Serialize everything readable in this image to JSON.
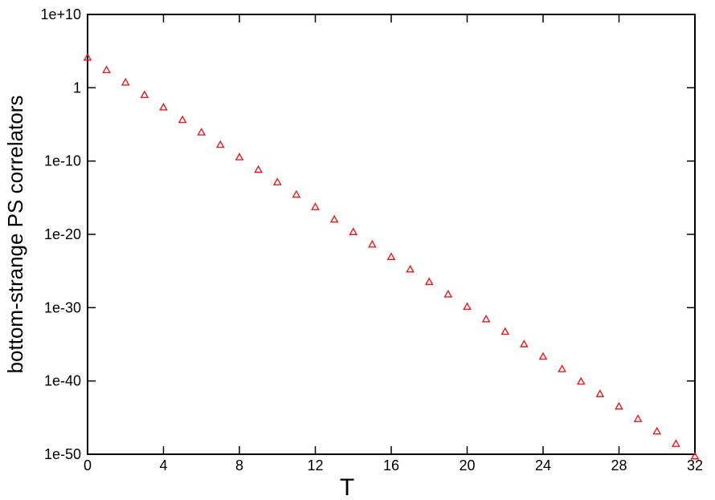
{
  "chart_data": {
    "type": "scatter",
    "title": "",
    "xlabel": "T",
    "ylabel": "bottom-strange PS correlators",
    "x_scale": "linear",
    "y_scale": "log",
    "xlim": [
      0,
      32
    ],
    "ylim": [
      1e-50,
      10000000000.0
    ],
    "x_ticks": [
      0,
      4,
      8,
      12,
      16,
      20,
      24,
      28,
      32
    ],
    "x_tick_labels": [
      "0",
      "4",
      "8",
      "12",
      "16",
      "20",
      "24",
      "28",
      "32"
    ],
    "y_ticks": [
      10000000000.0,
      1,
      1e-10,
      1e-20,
      1e-30,
      1e-40,
      1e-50
    ],
    "y_tick_labels": [
      "1e+10",
      "1",
      "1e-10",
      "1e-20",
      "1e-30",
      "1e-40",
      "1e-50"
    ],
    "grid": false,
    "legend": "none",
    "marker": "triangle",
    "marker_color": "#e41a1c",
    "series": [
      {
        "x": [
          0,
          1,
          2,
          3,
          4,
          5,
          6,
          7,
          8,
          9,
          10,
          11,
          12,
          13,
          14,
          15,
          16,
          17,
          18,
          19,
          20,
          21,
          22,
          23,
          24,
          25,
          26,
          27,
          28,
          29,
          30,
          31,
          32
        ],
        "y": [
          12600.0,
          251.0,
          5.01,
          0.1,
          0.002,
          3.98e-05,
          7.94e-07,
          1.58e-08,
          3.16e-10,
          6.31e-12,
          1.26e-13,
          2.51e-15,
          5.01e-17,
          1e-18,
          2e-20,
          3.98e-22,
          7.94e-24,
          1.58e-25,
          3.16e-27,
          6.31e-29,
          1.26e-30,
          2.51e-32,
          5.01e-34,
          1e-35,
          2e-37,
          3.98e-39,
          7.94e-41,
          1.58e-42,
          3.16e-44,
          6.31e-46,
          1.26e-47,
          2.51e-49,
          5.01e-51
        ]
      }
    ]
  }
}
